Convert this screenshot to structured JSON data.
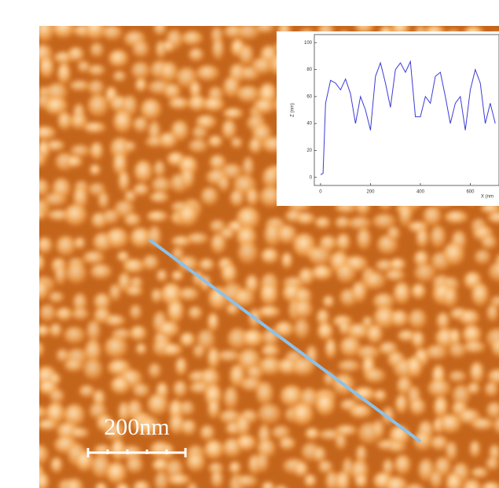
{
  "scale_bar": {
    "label": "200nm"
  },
  "chart_data": {
    "type": "line",
    "xlabel": "X (nm",
    "ylabel": "Z (nm)",
    "x": [
      0,
      10,
      20,
      40,
      60,
      80,
      100,
      120,
      140,
      160,
      180,
      200,
      220,
      240,
      260,
      280,
      300,
      320,
      340,
      360,
      380,
      400,
      420,
      440,
      460,
      480,
      500,
      520,
      540,
      560,
      580,
      600,
      620,
      640,
      660,
      680,
      700
    ],
    "series": [
      {
        "color": "#3b3bd6",
        "values": [
          2,
          3,
          55,
          72,
          70,
          65,
          73,
          62,
          40,
          60,
          50,
          35,
          75,
          85,
          70,
          52,
          80,
          85,
          78,
          86,
          45,
          45,
          60,
          55,
          75,
          78,
          60,
          40,
          55,
          60,
          35,
          65,
          80,
          70,
          40,
          55,
          40
        ]
      }
    ],
    "xlim": [
      -25,
      715
    ],
    "ylim": [
      -6,
      106
    ],
    "xticks": [
      0,
      200,
      400,
      600
    ],
    "yticks": [
      0,
      20,
      40,
      60,
      80,
      100
    ]
  }
}
